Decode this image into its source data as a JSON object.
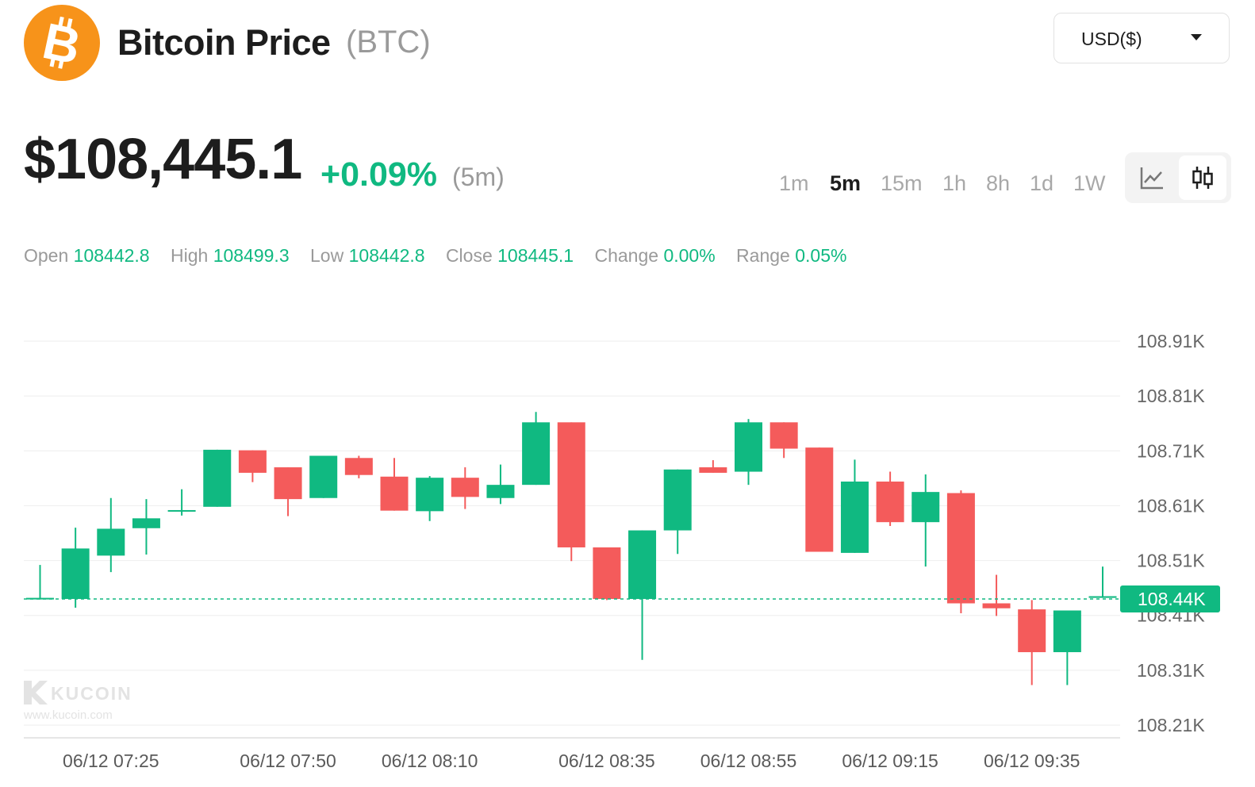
{
  "header": {
    "title": "Bitcoin Price",
    "ticker": "(BTC)",
    "logo_icon": "bitcoin-logo-icon",
    "logo_color": "#f7931a",
    "currency_select": {
      "value": "USD($)",
      "icon": "caret-down-icon"
    }
  },
  "price": {
    "current": "$108,445.1",
    "change": "+0.09%",
    "period": "(5m)"
  },
  "intervals": [
    "1m",
    "5m",
    "15m",
    "1h",
    "8h",
    "1d",
    "1W"
  ],
  "active_interval": "5m",
  "chart_type_toggle": [
    {
      "icon": "line-chart-icon",
      "active": false
    },
    {
      "icon": "candlestick-icon",
      "active": true
    }
  ],
  "ohlc": [
    {
      "key": "Open",
      "value": "108442.8"
    },
    {
      "key": "High",
      "value": "108499.3"
    },
    {
      "key": "Low",
      "value": "108442.8"
    },
    {
      "key": "Close",
      "value": "108445.1"
    },
    {
      "key": "Change",
      "value": "0.00%"
    },
    {
      "key": "Range",
      "value": "0.05%"
    }
  ],
  "watermark": {
    "brand": "KUCOIN",
    "url": "www.kucoin.com"
  },
  "colors": {
    "up": "#10b981",
    "down": "#f45b5b",
    "grid": "#eeeeee"
  },
  "chart_data": {
    "type": "candlestick",
    "y_axis": {
      "ticks": [
        108.91,
        108.81,
        108.71,
        108.61,
        108.51,
        108.41,
        108.31,
        108.21
      ],
      "tick_labels": [
        "108.91K",
        "108.81K",
        "108.71K",
        "108.61K",
        "108.51K",
        "108.41K",
        "108.31K",
        "108.21K"
      ],
      "unit": "K"
    },
    "x_axis": {
      "tick_labels": [
        "06/12 07:25",
        "06/12 07:50",
        "06/12 08:10",
        "06/12 08:35",
        "06/12 08:55",
        "06/12 09:15",
        "06/12 09:35"
      ],
      "tick_indices": [
        2,
        7,
        11,
        16,
        20,
        24,
        28
      ]
    },
    "current_price": {
      "value": 108.44,
      "label": "108.44K"
    },
    "candles": [
      {
        "o": 108.442,
        "h": 108.502,
        "l": 108.439,
        "c": 108.442
      },
      {
        "o": 108.44,
        "h": 108.57,
        "l": 108.424,
        "c": 108.532
      },
      {
        "o": 108.519,
        "h": 108.624,
        "l": 108.489,
        "c": 108.568
      },
      {
        "o": 108.569,
        "h": 108.622,
        "l": 108.521,
        "c": 108.587
      },
      {
        "o": 108.601,
        "h": 108.64,
        "l": 108.592,
        "c": 108.602
      },
      {
        "o": 108.608,
        "h": 108.712,
        "l": 108.608,
        "c": 108.712
      },
      {
        "o": 108.711,
        "h": 108.711,
        "l": 108.653,
        "c": 108.67
      },
      {
        "o": 108.68,
        "h": 108.68,
        "l": 108.591,
        "c": 108.622
      },
      {
        "o": 108.624,
        "h": 108.701,
        "l": 108.624,
        "c": 108.701
      },
      {
        "o": 108.697,
        "h": 108.701,
        "l": 108.66,
        "c": 108.666
      },
      {
        "o": 108.663,
        "h": 108.697,
        "l": 108.601,
        "c": 108.601
      },
      {
        "o": 108.6,
        "h": 108.664,
        "l": 108.582,
        "c": 108.661
      },
      {
        "o": 108.661,
        "h": 108.68,
        "l": 108.604,
        "c": 108.626
      },
      {
        "o": 108.624,
        "h": 108.685,
        "l": 108.613,
        "c": 108.648
      },
      {
        "o": 108.648,
        "h": 108.781,
        "l": 108.648,
        "c": 108.762
      },
      {
        "o": 108.762,
        "h": 108.762,
        "l": 108.509,
        "c": 108.534
      },
      {
        "o": 108.534,
        "h": 108.534,
        "l": 108.438,
        "c": 108.44
      },
      {
        "o": 108.44,
        "h": 108.565,
        "l": 108.329,
        "c": 108.565
      },
      {
        "o": 108.565,
        "h": 108.676,
        "l": 108.522,
        "c": 108.676
      },
      {
        "o": 108.68,
        "h": 108.693,
        "l": 108.67,
        "c": 108.67
      },
      {
        "o": 108.672,
        "h": 108.768,
        "l": 108.648,
        "c": 108.762
      },
      {
        "o": 108.762,
        "h": 108.762,
        "l": 108.697,
        "c": 108.714
      },
      {
        "o": 108.716,
        "h": 108.716,
        "l": 108.526,
        "c": 108.526
      },
      {
        "o": 108.524,
        "h": 108.694,
        "l": 108.524,
        "c": 108.654
      },
      {
        "o": 108.654,
        "h": 108.672,
        "l": 108.573,
        "c": 108.58
      },
      {
        "o": 108.58,
        "h": 108.667,
        "l": 108.499,
        "c": 108.635
      },
      {
        "o": 108.633,
        "h": 108.638,
        "l": 108.414,
        "c": 108.432
      },
      {
        "o": 108.432,
        "h": 108.484,
        "l": 108.409,
        "c": 108.423
      },
      {
        "o": 108.421,
        "h": 108.438,
        "l": 108.283,
        "c": 108.343
      },
      {
        "o": 108.343,
        "h": 108.419,
        "l": 108.283,
        "c": 108.419
      },
      {
        "o": 108.442,
        "h": 108.499,
        "l": 108.442,
        "c": 108.445
      }
    ]
  }
}
